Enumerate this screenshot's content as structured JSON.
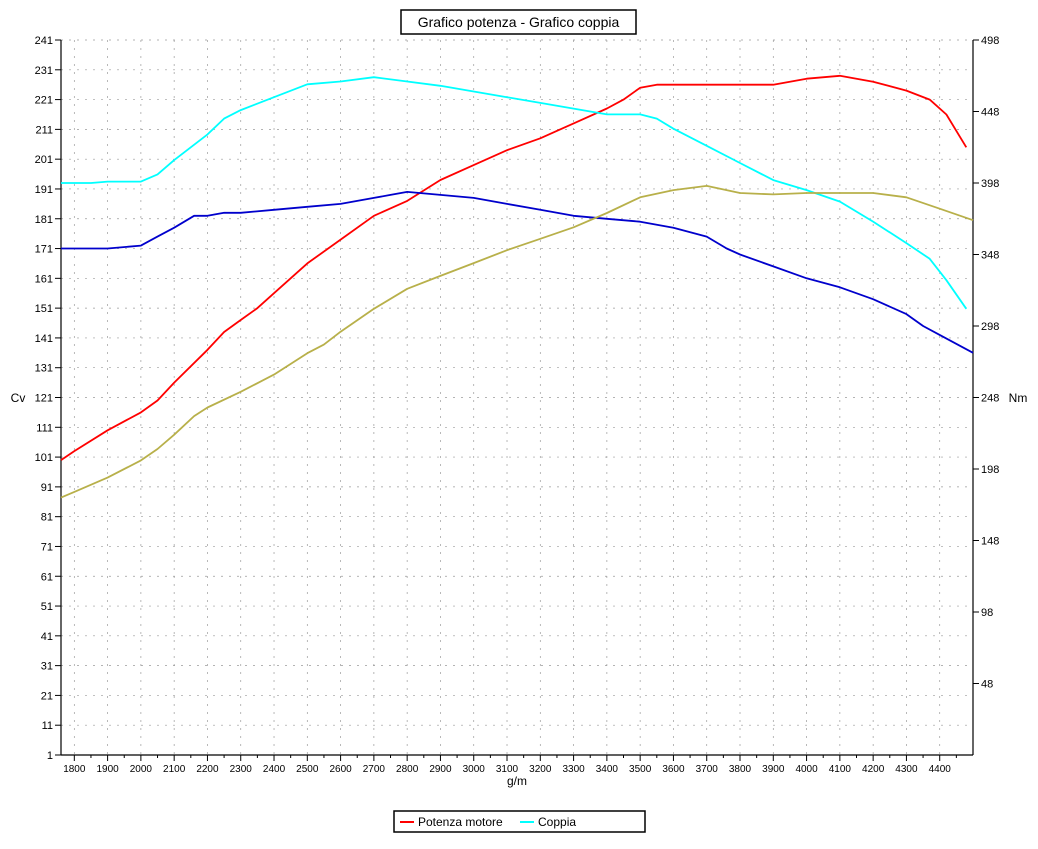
{
  "chart_data": {
    "type": "line",
    "title": "Grafico potenza - Grafico coppia",
    "xlabel": "g/m",
    "ylabel_left": "Cv",
    "ylabel_right": "Nm",
    "xlim": [
      1760,
      4500
    ],
    "ylim_left": [
      1,
      241
    ],
    "ylim_right": [
      -2,
      498
    ],
    "x_ticks": [
      1800,
      1900,
      2000,
      2100,
      2200,
      2300,
      2400,
      2500,
      2600,
      2700,
      2800,
      2900,
      3000,
      3100,
      3200,
      3300,
      3400,
      3500,
      3600,
      3700,
      3800,
      3900,
      4000,
      4100,
      4200,
      4300,
      4400
    ],
    "y_ticks_left": [
      1,
      11,
      21,
      31,
      41,
      51,
      61,
      71,
      81,
      91,
      101,
      111,
      121,
      131,
      141,
      151,
      161,
      171,
      181,
      191,
      201,
      211,
      221,
      231,
      241
    ],
    "y_ticks_right": [
      48,
      98,
      148,
      198,
      248,
      298,
      348,
      398,
      448,
      498
    ],
    "grid": true,
    "legend": {
      "placement": "bottom-center",
      "entries": [
        {
          "name": "Potenza motore",
          "color": "#ff0000"
        },
        {
          "name": "Coppia",
          "color": "#00ffff"
        }
      ]
    },
    "series": [
      {
        "name": "Potenza motore",
        "color": "#ff0000",
        "axis": "left",
        "points": [
          [
            1760,
            100
          ],
          [
            1800,
            103
          ],
          [
            1900,
            110
          ],
          [
            2000,
            116
          ],
          [
            2050,
            120
          ],
          [
            2100,
            126
          ],
          [
            2200,
            137
          ],
          [
            2250,
            143
          ],
          [
            2300,
            147
          ],
          [
            2350,
            151
          ],
          [
            2400,
            156
          ],
          [
            2500,
            166
          ],
          [
            2600,
            174
          ],
          [
            2700,
            182
          ],
          [
            2800,
            187
          ],
          [
            2900,
            194
          ],
          [
            3000,
            199
          ],
          [
            3100,
            204
          ],
          [
            3200,
            208
          ],
          [
            3300,
            213
          ],
          [
            3400,
            218
          ],
          [
            3450,
            221
          ],
          [
            3500,
            225
          ],
          [
            3550,
            226
          ],
          [
            3600,
            226
          ],
          [
            3700,
            226
          ],
          [
            3800,
            226
          ],
          [
            3900,
            226
          ],
          [
            3950,
            227
          ],
          [
            4000,
            228
          ],
          [
            4100,
            229
          ],
          [
            4200,
            227
          ],
          [
            4300,
            224
          ],
          [
            4370,
            221
          ],
          [
            4420,
            216
          ],
          [
            4480,
            205
          ]
        ]
      },
      {
        "name": "Coppia",
        "color": "#00ffff",
        "axis": "right",
        "points": [
          [
            1760,
            398
          ],
          [
            1850,
            398
          ],
          [
            1900,
            399
          ],
          [
            2000,
            399
          ],
          [
            2050,
            404
          ],
          [
            2100,
            414
          ],
          [
            2200,
            432
          ],
          [
            2250,
            443
          ],
          [
            2300,
            449
          ],
          [
            2400,
            458
          ],
          [
            2500,
            467
          ],
          [
            2600,
            469
          ],
          [
            2700,
            472
          ],
          [
            2800,
            469
          ],
          [
            2900,
            466
          ],
          [
            3000,
            462
          ],
          [
            3100,
            458
          ],
          [
            3200,
            454
          ],
          [
            3300,
            450
          ],
          [
            3400,
            446
          ],
          [
            3500,
            446
          ],
          [
            3550,
            443
          ],
          [
            3600,
            436
          ],
          [
            3700,
            424
          ],
          [
            3800,
            412
          ],
          [
            3900,
            400
          ],
          [
            4000,
            393
          ],
          [
            4100,
            385
          ],
          [
            4200,
            371
          ],
          [
            4300,
            356
          ],
          [
            4370,
            345
          ],
          [
            4420,
            330
          ],
          [
            4480,
            310
          ]
        ]
      },
      {
        "color": "#0000cc",
        "axis": "left",
        "points": [
          [
            1760,
            171
          ],
          [
            1800,
            171
          ],
          [
            1900,
            171
          ],
          [
            2000,
            172
          ],
          [
            2050,
            175
          ],
          [
            2100,
            178
          ],
          [
            2160,
            182
          ],
          [
            2200,
            182
          ],
          [
            2250,
            183
          ],
          [
            2300,
            183
          ],
          [
            2400,
            184
          ],
          [
            2500,
            185
          ],
          [
            2600,
            186
          ],
          [
            2700,
            188
          ],
          [
            2750,
            189
          ],
          [
            2800,
            190
          ],
          [
            2900,
            189
          ],
          [
            3000,
            188
          ],
          [
            3100,
            186
          ],
          [
            3200,
            184
          ],
          [
            3300,
            182
          ],
          [
            3400,
            181
          ],
          [
            3500,
            180
          ],
          [
            3600,
            178
          ],
          [
            3700,
            175
          ],
          [
            3760,
            171
          ],
          [
            3800,
            169
          ],
          [
            3900,
            165
          ],
          [
            4000,
            161
          ],
          [
            4100,
            158
          ],
          [
            4200,
            154
          ],
          [
            4300,
            149
          ],
          [
            4350,
            145
          ],
          [
            4400,
            142
          ],
          [
            4500,
            136
          ]
        ]
      },
      {
        "color": "#b8b04a",
        "axis": "right",
        "points": [
          [
            1760,
            178
          ],
          [
            1800,
            182
          ],
          [
            1900,
            192
          ],
          [
            2000,
            204
          ],
          [
            2050,
            212
          ],
          [
            2100,
            222
          ],
          [
            2160,
            235
          ],
          [
            2200,
            241
          ],
          [
            2300,
            252
          ],
          [
            2400,
            264
          ],
          [
            2500,
            279
          ],
          [
            2550,
            285
          ],
          [
            2600,
            294
          ],
          [
            2700,
            310
          ],
          [
            2800,
            324
          ],
          [
            2900,
            333
          ],
          [
            3000,
            342
          ],
          [
            3100,
            351
          ],
          [
            3200,
            359
          ],
          [
            3300,
            367
          ],
          [
            3400,
            377
          ],
          [
            3500,
            388
          ],
          [
            3600,
            393
          ],
          [
            3700,
            396
          ],
          [
            3800,
            391
          ],
          [
            3900,
            390
          ],
          [
            4000,
            391
          ],
          [
            4100,
            391
          ],
          [
            4200,
            391
          ],
          [
            4300,
            388
          ],
          [
            4400,
            380
          ],
          [
            4500,
            372
          ]
        ]
      }
    ]
  }
}
